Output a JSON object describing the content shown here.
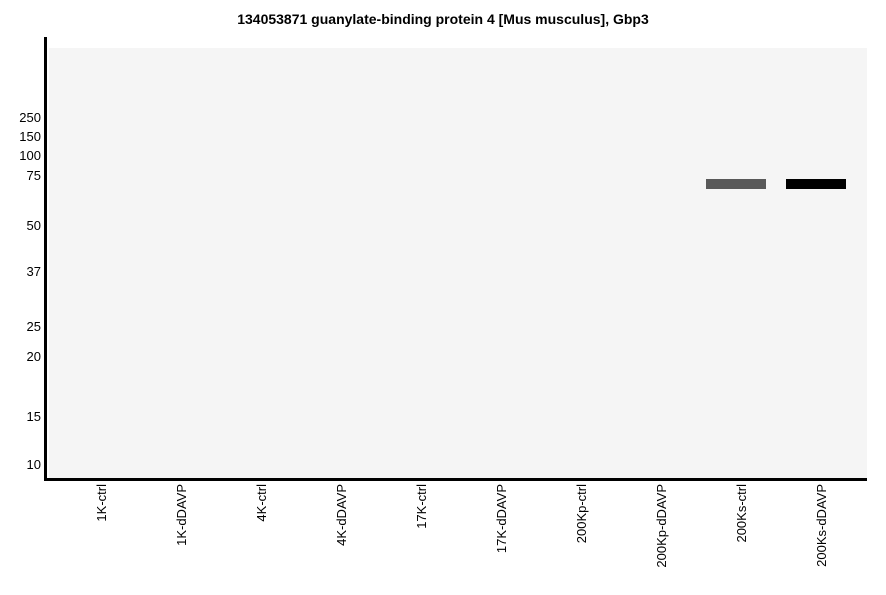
{
  "chart_data": {
    "type": "western-blot",
    "title": "134053871 guanylate-binding protein 4 [Mus musculus], Gbp3",
    "x_axis": {
      "lanes": [
        "1K-ctrl",
        "1K-dDAVP",
        "4K-ctrl",
        "4K-dDAVP",
        "17K-ctrl",
        "17K-dDAVP",
        "200Kp-ctrl",
        "200Kp-dDAVP",
        "200Ks-ctrl",
        "200Ks-dDAVP"
      ]
    },
    "y_axis": {
      "ticks": [
        250,
        150,
        100,
        75,
        50,
        37,
        25,
        20,
        15,
        10
      ]
    },
    "bands": [
      {
        "lane": "200Ks-ctrl",
        "lane_index": 8,
        "approx_mw": 72,
        "color": "#595959",
        "intensity": "medium"
      },
      {
        "lane": "200Ks-dDAVP",
        "lane_index": 9,
        "approx_mw": 72,
        "color": "#000000",
        "intensity": "strong"
      }
    ],
    "grid": false,
    "legend": false
  },
  "colors": {
    "page_bg": "#ffffff",
    "plot_bg": "#f5f5f5",
    "axis": "#000000",
    "text": "#000000"
  }
}
